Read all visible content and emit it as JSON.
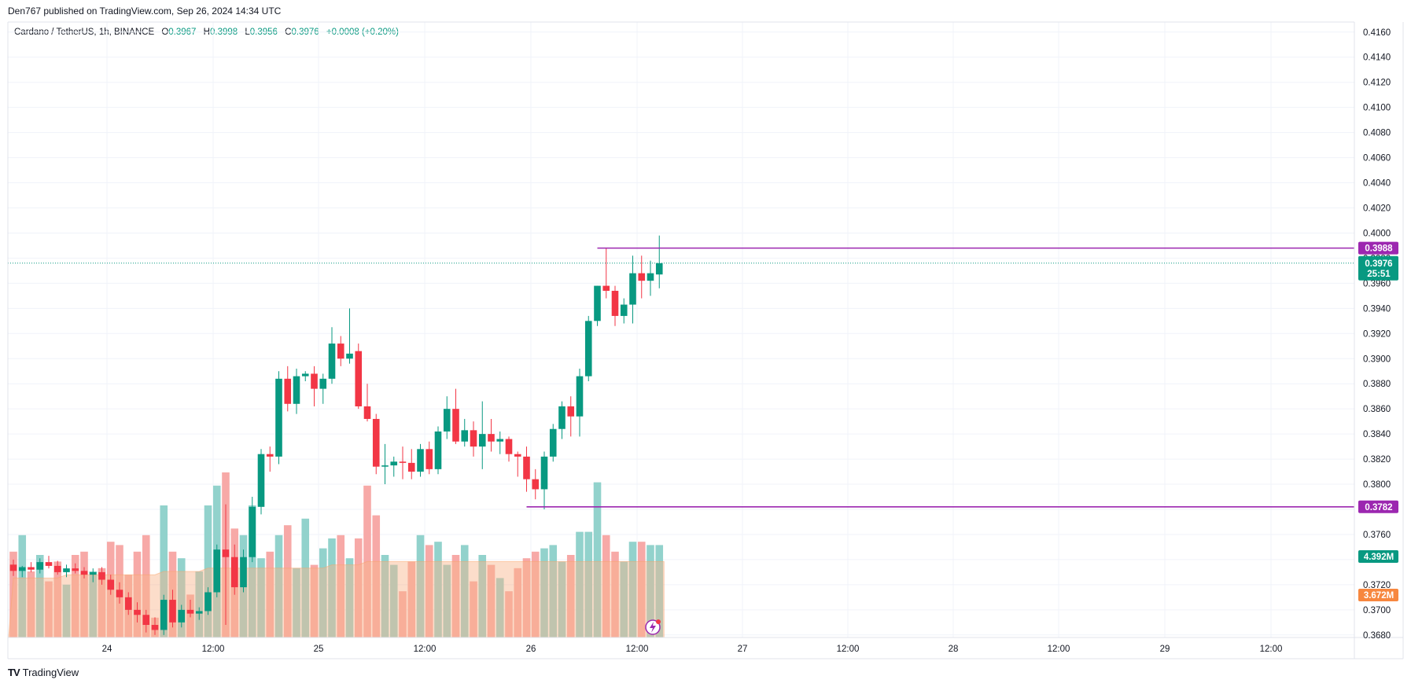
{
  "header": {
    "published": "Den767 published on TradingView.com, Sep 26, 2024 14:34 UTC"
  },
  "legend": {
    "symbol": "Cardano / TetherUS, 1h, BINANCE",
    "o_label": "O",
    "o": "0.3967",
    "h_label": "H",
    "h": "0.3998",
    "l_label": "L",
    "l": "0.3956",
    "c_label": "C",
    "c": "0.3976",
    "change": "+0.0008 (+0.20%)"
  },
  "footer": {
    "logo": "TV",
    "brand": "TradingView"
  },
  "colors": {
    "up": "#089981",
    "down": "#f23645",
    "vol_up": "#92d2cc",
    "vol_down": "#f7a9a7",
    "vol_ma_fill": "#f9b48a",
    "level_line": "#9c27b0",
    "grid": "#f0f3fa"
  },
  "chart_data": {
    "type": "candlestick",
    "ylim": [
      0.3678,
      0.4168
    ],
    "y_ticks": [
      "0.4160",
      "0.4140",
      "0.4120",
      "0.4100",
      "0.4080",
      "0.4060",
      "0.4040",
      "0.4020",
      "0.4000",
      "0.3980",
      "0.3960",
      "0.3940",
      "0.3920",
      "0.3900",
      "0.3880",
      "0.3860",
      "0.3840",
      "0.3820",
      "0.3800",
      "0.3780",
      "0.3760",
      "0.3740",
      "0.3720",
      "0.3700",
      "0.3680"
    ],
    "x_ticks": [
      "24",
      "12:00",
      "25",
      "12:00",
      "26",
      "12:00",
      "27",
      "12:00",
      "28",
      "12:00",
      "29",
      "12:00"
    ],
    "current_price": "0.3976",
    "countdown": "25:51",
    "levels": [
      {
        "price": 0.3988,
        "label": "0.3988",
        "start_bar": 66
      },
      {
        "price": 0.3782,
        "label": "0.3782",
        "start_bar": 58
      }
    ],
    "volume_labels": {
      "volume": "4.392M",
      "volume_ma": "3.672M"
    },
    "candles": [
      [
        0.3736,
        0.374,
        0.3727,
        0.3731
      ],
      [
        0.3731,
        0.3735,
        0.3726,
        0.3734
      ],
      [
        0.3734,
        0.3738,
        0.373,
        0.3732
      ],
      [
        0.3732,
        0.3741,
        0.3729,
        0.3738
      ],
      [
        0.3738,
        0.3743,
        0.3733,
        0.3735
      ],
      [
        0.3735,
        0.3739,
        0.3728,
        0.373
      ],
      [
        0.373,
        0.3736,
        0.3726,
        0.3733
      ],
      [
        0.3733,
        0.3737,
        0.3729,
        0.3731
      ],
      [
        0.3731,
        0.3734,
        0.3725,
        0.3728
      ],
      [
        0.3728,
        0.3733,
        0.3722,
        0.373
      ],
      [
        0.373,
        0.3734,
        0.372,
        0.3724
      ],
      [
        0.3724,
        0.3728,
        0.3712,
        0.3716
      ],
      [
        0.3716,
        0.3722,
        0.3705,
        0.371
      ],
      [
        0.371,
        0.3714,
        0.3696,
        0.37
      ],
      [
        0.37,
        0.3706,
        0.369,
        0.3696
      ],
      [
        0.3696,
        0.37,
        0.3682,
        0.3688
      ],
      [
        0.3688,
        0.3694,
        0.368,
        0.3684
      ],
      [
        0.3684,
        0.3712,
        0.368,
        0.3708
      ],
      [
        0.3708,
        0.3716,
        0.3686,
        0.369
      ],
      [
        0.369,
        0.3704,
        0.3686,
        0.37
      ],
      [
        0.37,
        0.3708,
        0.3694,
        0.3697
      ],
      [
        0.3697,
        0.3702,
        0.3692,
        0.3699
      ],
      [
        0.3699,
        0.3718,
        0.3696,
        0.3714
      ],
      [
        0.3714,
        0.3752,
        0.371,
        0.3748
      ],
      [
        0.3748,
        0.3784,
        0.3688,
        0.3742
      ],
      [
        0.3742,
        0.3752,
        0.3712,
        0.3718
      ],
      [
        0.3718,
        0.3748,
        0.3714,
        0.3742
      ],
      [
        0.3742,
        0.379,
        0.3738,
        0.3782
      ],
      [
        0.3782,
        0.3828,
        0.3776,
        0.3824
      ],
      [
        0.3824,
        0.383,
        0.381,
        0.3822
      ],
      [
        0.3822,
        0.389,
        0.3816,
        0.3884
      ],
      [
        0.3884,
        0.3894,
        0.3858,
        0.3864
      ],
      [
        0.3864,
        0.3892,
        0.3856,
        0.3886
      ],
      [
        0.3886,
        0.389,
        0.3882,
        0.3888
      ],
      [
        0.3888,
        0.3894,
        0.3862,
        0.3876
      ],
      [
        0.3876,
        0.3888,
        0.3864,
        0.3884
      ],
      [
        0.3884,
        0.3925,
        0.388,
        0.3912
      ],
      [
        0.3912,
        0.3918,
        0.3894,
        0.39
      ],
      [
        0.39,
        0.394,
        0.3896,
        0.3904
      ],
      [
        0.3906,
        0.3912,
        0.386,
        0.3862
      ],
      [
        0.3862,
        0.388,
        0.385,
        0.3852
      ],
      [
        0.3852,
        0.3856,
        0.3808,
        0.3814
      ],
      [
        0.3814,
        0.3832,
        0.38,
        0.3815
      ],
      [
        0.3815,
        0.3822,
        0.3806,
        0.3818
      ],
      [
        0.3818,
        0.383,
        0.3804,
        0.3817
      ],
      [
        0.3817,
        0.3828,
        0.3804,
        0.381
      ],
      [
        0.381,
        0.3832,
        0.3806,
        0.3828
      ],
      [
        0.3828,
        0.3834,
        0.3808,
        0.3812
      ],
      [
        0.3812,
        0.3846,
        0.3808,
        0.3842
      ],
      [
        0.3842,
        0.387,
        0.3836,
        0.386
      ],
      [
        0.386,
        0.3876,
        0.3832,
        0.3834
      ],
      [
        0.3834,
        0.3852,
        0.383,
        0.3843
      ],
      [
        0.3843,
        0.385,
        0.3822,
        0.383
      ],
      [
        0.383,
        0.3866,
        0.3812,
        0.384
      ],
      [
        0.384,
        0.3852,
        0.3826,
        0.3834
      ],
      [
        0.3834,
        0.3842,
        0.3824,
        0.3836
      ],
      [
        0.3836,
        0.3838,
        0.3818,
        0.3824
      ],
      [
        0.3824,
        0.3826,
        0.3806,
        0.3822
      ],
      [
        0.3822,
        0.383,
        0.3794,
        0.3804
      ],
      [
        0.3804,
        0.3812,
        0.3788,
        0.3796
      ],
      [
        0.3796,
        0.3826,
        0.378,
        0.3822
      ],
      [
        0.3822,
        0.3848,
        0.3818,
        0.3844
      ],
      [
        0.3844,
        0.3866,
        0.3836,
        0.3862
      ],
      [
        0.3862,
        0.387,
        0.3838,
        0.3854
      ],
      [
        0.3854,
        0.3892,
        0.3838,
        0.3886
      ],
      [
        0.3886,
        0.3934,
        0.3882,
        0.393
      ],
      [
        0.393,
        0.3958,
        0.3926,
        0.3958
      ],
      [
        0.3958,
        0.3988,
        0.3948,
        0.3954
      ],
      [
        0.3954,
        0.3958,
        0.3926,
        0.3934
      ],
      [
        0.3934,
        0.3948,
        0.3928,
        0.3943
      ],
      [
        0.3943,
        0.3982,
        0.3928,
        0.3968
      ],
      [
        0.3968,
        0.3982,
        0.3948,
        0.3962
      ],
      [
        0.3962,
        0.3978,
        0.395,
        0.3968
      ],
      [
        0.3967,
        0.3998,
        0.3956,
        0.3976
      ]
    ],
    "volumes": [
      0.26,
      0.31,
      0.2,
      0.25,
      0.17,
      0.23,
      0.16,
      0.25,
      0.26,
      0.2,
      0.21,
      0.29,
      0.28,
      0.19,
      0.26,
      0.31,
      0.06,
      0.4,
      0.26,
      0.24,
      0.13,
      0.2,
      0.4,
      0.46,
      0.5,
      0.33,
      0.31,
      0.4,
      0.24,
      0.26,
      0.31,
      0.34,
      0.21,
      0.36,
      0.22,
      0.27,
      0.3,
      0.31,
      0.24,
      0.3,
      0.46,
      0.37,
      0.25,
      0.22,
      0.14,
      0.23,
      0.31,
      0.28,
      0.29,
      0.22,
      0.25,
      0.28,
      0.17,
      0.25,
      0.22,
      0.18,
      0.14,
      0.21,
      0.24,
      0.26,
      0.27,
      0.28,
      0.23,
      0.25,
      0.32,
      0.32,
      0.47,
      0.31,
      0.26,
      0.23,
      0.29,
      0.29,
      0.28,
      0.28
    ],
    "vol_ma": [
      0.18,
      0.18,
      0.18,
      0.18,
      0.18,
      0.18,
      0.19,
      0.19,
      0.19,
      0.19,
      0.19,
      0.19,
      0.19,
      0.19,
      0.19,
      0.19,
      0.19,
      0.2,
      0.2,
      0.2,
      0.2,
      0.2,
      0.21,
      0.21,
      0.21,
      0.21,
      0.21,
      0.21,
      0.21,
      0.21,
      0.21,
      0.21,
      0.21,
      0.21,
      0.21,
      0.21,
      0.22,
      0.22,
      0.22,
      0.22,
      0.23,
      0.23,
      0.23,
      0.23,
      0.23,
      0.23,
      0.23,
      0.23,
      0.23,
      0.23,
      0.23,
      0.23,
      0.23,
      0.23,
      0.23,
      0.23,
      0.23,
      0.23,
      0.23,
      0.23,
      0.23,
      0.23,
      0.23,
      0.23,
      0.23,
      0.23,
      0.23,
      0.23,
      0.23,
      0.23,
      0.23,
      0.23,
      0.23,
      0.23
    ]
  }
}
